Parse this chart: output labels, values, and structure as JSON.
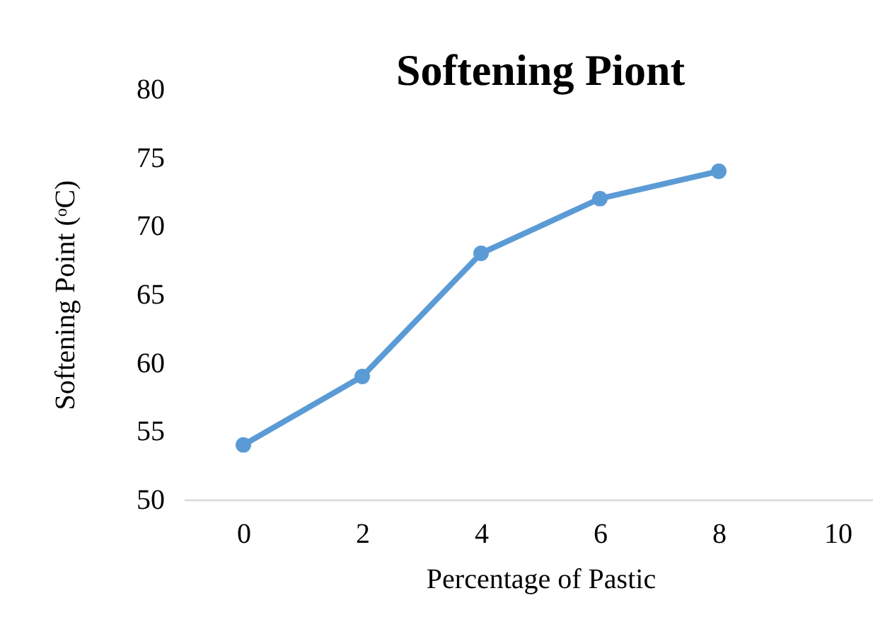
{
  "chart_data": {
    "type": "line",
    "title": "Softening Piont",
    "xlabel": "Percentage of Pastic",
    "ylabel": "Softening Point (ᵒC)",
    "categories": [
      "0",
      "2",
      "4",
      "6",
      "8",
      "10"
    ],
    "series": [
      {
        "color": "#5b9bd5",
        "values": [
          54,
          59,
          68,
          72,
          74,
          null
        ]
      }
    ],
    "ylim": [
      50,
      80
    ],
    "yticks": [
      50,
      55,
      60,
      65,
      70,
      75,
      80
    ],
    "grid": false,
    "marker": "circle",
    "line_style": "solid"
  }
}
